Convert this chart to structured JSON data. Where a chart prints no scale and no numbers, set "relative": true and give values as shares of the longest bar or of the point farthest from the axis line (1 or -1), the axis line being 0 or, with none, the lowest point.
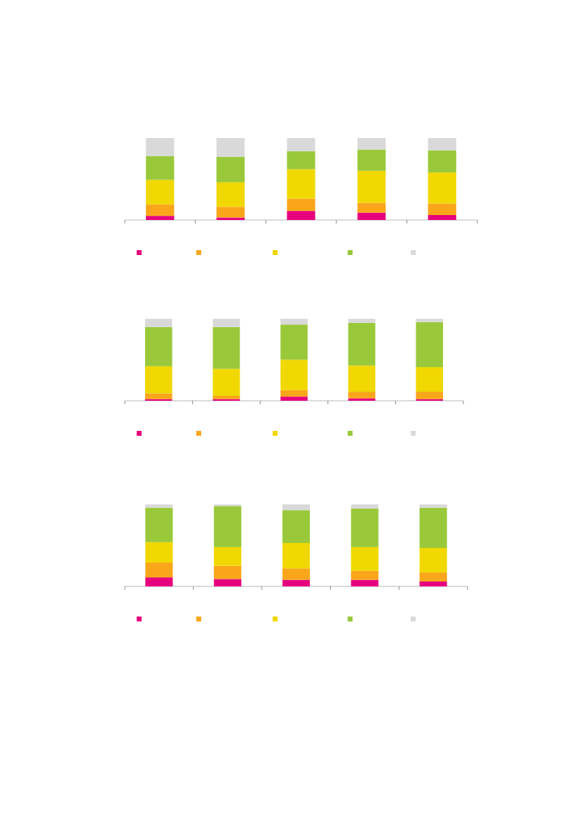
{
  "chart_data": [
    {
      "type": "bar",
      "stacked": true,
      "relative": true,
      "categories": [
        null,
        null,
        null,
        null,
        null
      ],
      "series": [
        {
          "color": "#e6007e",
          "values": [
            0.05,
            0.03,
            0.11,
            0.09,
            0.06
          ]
        },
        {
          "color": "#f9a61a",
          "values": [
            0.14,
            0.13,
            0.15,
            0.12,
            0.14
          ]
        },
        {
          "color": "#f0d800",
          "values": [
            0.3,
            0.3,
            0.36,
            0.39,
            0.38
          ]
        },
        {
          "color": "#99c93a",
          "values": [
            0.29,
            0.31,
            0.22,
            0.26,
            0.27
          ]
        },
        {
          "color": "#d9d9d9",
          "values": [
            0.22,
            0.23,
            0.16,
            0.14,
            0.15
          ]
        }
      ]
    },
    {
      "type": "bar",
      "stacked": true,
      "relative": true,
      "categories": [
        null,
        null,
        null,
        null,
        null
      ],
      "series": [
        {
          "color": "#e6007e",
          "values": [
            0.02,
            0.02,
            0.05,
            0.03,
            0.02
          ]
        },
        {
          "color": "#f9a61a",
          "values": [
            0.07,
            0.04,
            0.08,
            0.08,
            0.09
          ]
        },
        {
          "color": "#f0d800",
          "values": [
            0.33,
            0.33,
            0.37,
            0.32,
            0.3
          ]
        },
        {
          "color": "#99c93a",
          "values": [
            0.48,
            0.51,
            0.43,
            0.52,
            0.55
          ]
        },
        {
          "color": "#d9d9d9",
          "values": [
            0.1,
            0.1,
            0.07,
            0.05,
            0.04
          ]
        }
      ]
    },
    {
      "type": "bar",
      "stacked": true,
      "relative": true,
      "categories": [
        null,
        null,
        null,
        null,
        null
      ],
      "series": [
        {
          "color": "#e6007e",
          "values": [
            0.11,
            0.09,
            0.08,
            0.08,
            0.06
          ]
        },
        {
          "color": "#f9a61a",
          "values": [
            0.18,
            0.16,
            0.14,
            0.11,
            0.11
          ]
        },
        {
          "color": "#f0d800",
          "values": [
            0.25,
            0.23,
            0.31,
            0.29,
            0.3
          ]
        },
        {
          "color": "#99c93a",
          "values": [
            0.42,
            0.5,
            0.4,
            0.47,
            0.49
          ]
        },
        {
          "color": "#d9d9d9",
          "values": [
            0.04,
            0.02,
            0.07,
            0.05,
            0.04
          ]
        }
      ]
    }
  ]
}
